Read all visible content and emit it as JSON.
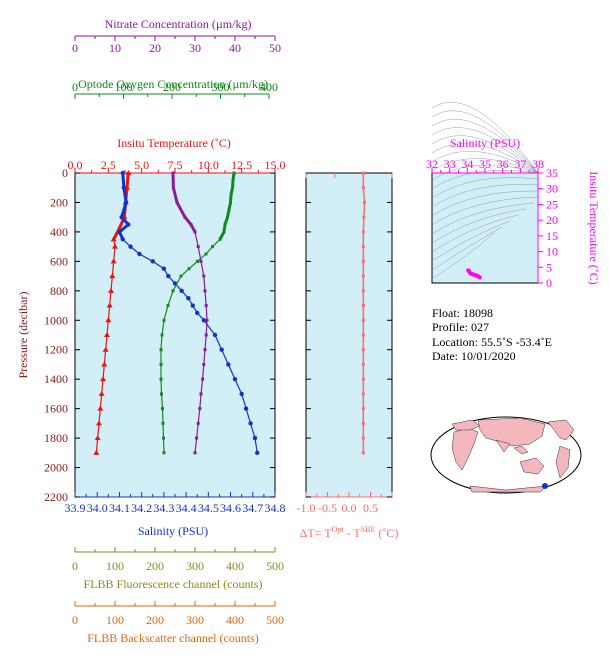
{
  "colors": {
    "nitrate": "#8b1a9b",
    "oxygen": "#118a1b",
    "temperature": "#ee1111",
    "salinity": "#1133cc",
    "pressure": "#8b1a1a",
    "delta": "#ff6b6b",
    "fluorescence": "#8a8a22",
    "backscatter": "#dd6611",
    "ts": "#ff00ff",
    "panel_bg": "#d2eef7"
  },
  "labels": {
    "nitrate_axis": "Nitrate Concentration (µm/kg)",
    "oxygen_axis": "Optode Oxygen Concentration (µm/kg)",
    "temperature_axis": "Insitu Temperature (˚C)",
    "salinity_axis": "Salinity (PSU)",
    "pressure_axis": "Pressure (decibar)",
    "delta_axis": "ΔT= T",
    "delta_sup1": "Opt",
    "delta_mid": " - T",
    "delta_sup2": "SBE",
    "delta_end": " (˚C)",
    "fluorescence_axis": "FLBB Fluorescence channel (counts)",
    "backscatter_axis": "FLBB Backscatter channel (counts)",
    "ts_top_axis": "Salinity (PSU)",
    "ts_right_axis": "Insitu Temperature (˚C)"
  },
  "info": {
    "float": "Float:  18098",
    "profile": "Profile:  027",
    "location": "Location:  55.5˚S  -53.4˚E",
    "date": "Date:  10/01/2020"
  },
  "axes": {
    "nitrate_ticks": [
      "0",
      "10",
      "20",
      "30",
      "40",
      "50"
    ],
    "oxygen_ticks": [
      "0",
      "100",
      "200",
      "300",
      "400"
    ],
    "temperature_ticks": [
      "0.0",
      "2.5",
      "5.0",
      "7.5",
      "10.0",
      "12.5",
      "15.0"
    ],
    "salinity_ticks": [
      "33.9",
      "34.0",
      "34.1",
      "34.2",
      "34.3",
      "34.4",
      "34.5",
      "34.6",
      "34.7",
      "34.8"
    ],
    "pressure_ticks": [
      "0",
      "200",
      "400",
      "600",
      "800",
      "1000",
      "1200",
      "1400",
      "1600",
      "1800",
      "2000",
      "2200"
    ],
    "delta_ticks": [
      "-1.0",
      "-0.5",
      "0.0",
      "0.5"
    ],
    "fluorescence_ticks": [
      "0",
      "100",
      "200",
      "300",
      "400",
      "500"
    ],
    "backscatter_ticks": [
      "0",
      "100",
      "200",
      "300",
      "400",
      "500"
    ],
    "ts_sal_ticks": [
      "32",
      "33",
      "34",
      "35",
      "36",
      "37",
      "38"
    ],
    "ts_temp_ticks": [
      "0",
      "5",
      "10",
      "15",
      "20",
      "25",
      "30",
      "35"
    ]
  },
  "chart_data": [
    {
      "type": "line",
      "name": "profiles",
      "ylim": [
        0,
        2200
      ],
      "xlim_temperature": [
        0,
        15
      ],
      "xlim_salinity": [
        33.9,
        34.8
      ],
      "xlim_oxygen": [
        0,
        400
      ],
      "xlim_nitrate": [
        0,
        50
      ],
      "series": [
        {
          "name": "temperature",
          "pressure": [
            0,
            100,
            200,
            300,
            400,
            450,
            500,
            600,
            700,
            800,
            900,
            1000,
            1100,
            1200,
            1300,
            1400,
            1500,
            1600,
            1700,
            1800,
            1900
          ],
          "values": [
            4.0,
            3.9,
            3.8,
            3.7,
            3.2,
            2.9,
            3.0,
            2.9,
            2.8,
            2.7,
            2.6,
            2.5,
            2.4,
            2.3,
            2.2,
            2.1,
            2.0,
            1.9,
            1.8,
            1.7,
            1.6
          ]
        },
        {
          "name": "salinity",
          "pressure": [
            0,
            100,
            200,
            300,
            350,
            400,
            450,
            500,
            550,
            600,
            650,
            700,
            750,
            800,
            850,
            900,
            950,
            1000,
            1100,
            1200,
            1300,
            1400,
            1500,
            1600,
            1700,
            1800,
            1900
          ],
          "values": [
            34.115,
            34.12,
            34.13,
            34.11,
            34.14,
            34.1,
            34.115,
            34.15,
            34.19,
            34.25,
            34.3,
            34.32,
            34.35,
            34.38,
            34.41,
            34.43,
            34.45,
            34.48,
            34.53,
            34.56,
            34.59,
            34.62,
            34.65,
            34.67,
            34.69,
            34.71,
            34.72
          ]
        },
        {
          "name": "oxygen",
          "pressure": [
            0,
            50,
            100,
            150,
            200,
            250,
            300,
            350,
            400,
            450,
            500,
            550,
            600,
            650,
            700,
            800,
            900,
            1000,
            1100,
            1200,
            1300,
            1400,
            1500,
            1600,
            1700,
            1800,
            1900
          ],
          "values": [
            318,
            316,
            315,
            312,
            311,
            308,
            305,
            300,
            298,
            290,
            275,
            262,
            245,
            228,
            212,
            196,
            186,
            178,
            174,
            172,
            172,
            172,
            173,
            175,
            176,
            177,
            178
          ]
        },
        {
          "name": "nitrate",
          "pressure": [
            0,
            100,
            200,
            300,
            350,
            400,
            500,
            600,
            700,
            800,
            900,
            1000,
            1100,
            1200,
            1300,
            1400,
            1500,
            1600,
            1700,
            1800,
            1900
          ],
          "values": [
            24.5,
            24.6,
            25.5,
            27.5,
            29,
            30,
            30.8,
            31.5,
            32.2,
            32.5,
            32.8,
            33,
            32.8,
            32.5,
            32.2,
            31.9,
            31.5,
            31.2,
            30.8,
            30.4,
            30
          ]
        }
      ]
    },
    {
      "type": "line",
      "name": "delta_t",
      "xlim": [
        -1.0,
        0.5
      ],
      "ylim": [
        0,
        2200
      ],
      "pressure": [
        0,
        100,
        200,
        300,
        400,
        500,
        600,
        700,
        800,
        900,
        1000,
        1100,
        1200,
        1300,
        1400,
        1500,
        1600,
        1700,
        1800,
        1900
      ],
      "values": [
        0.0,
        0.0,
        0.02,
        0.01,
        0.0,
        0.0,
        0.0,
        0.0,
        0.0,
        0.0,
        0.0,
        0.0,
        0.0,
        0.0,
        0.0,
        0.0,
        0.0,
        0.0,
        0.0,
        0.0
      ]
    },
    {
      "type": "scatter",
      "name": "ts_diagram",
      "xlim": [
        32,
        38
      ],
      "ylim": [
        0,
        35
      ],
      "x": [
        34.05,
        34.1,
        34.15,
        34.2,
        34.25,
        34.3,
        34.35,
        34.4,
        34.45,
        34.5,
        34.55,
        34.6,
        34.65,
        34.7
      ],
      "y": [
        4.0,
        3.7,
        3.2,
        3.0,
        2.9,
        2.8,
        2.7,
        2.6,
        2.5,
        2.4,
        2.3,
        2.2,
        2.0,
        1.8
      ]
    }
  ]
}
